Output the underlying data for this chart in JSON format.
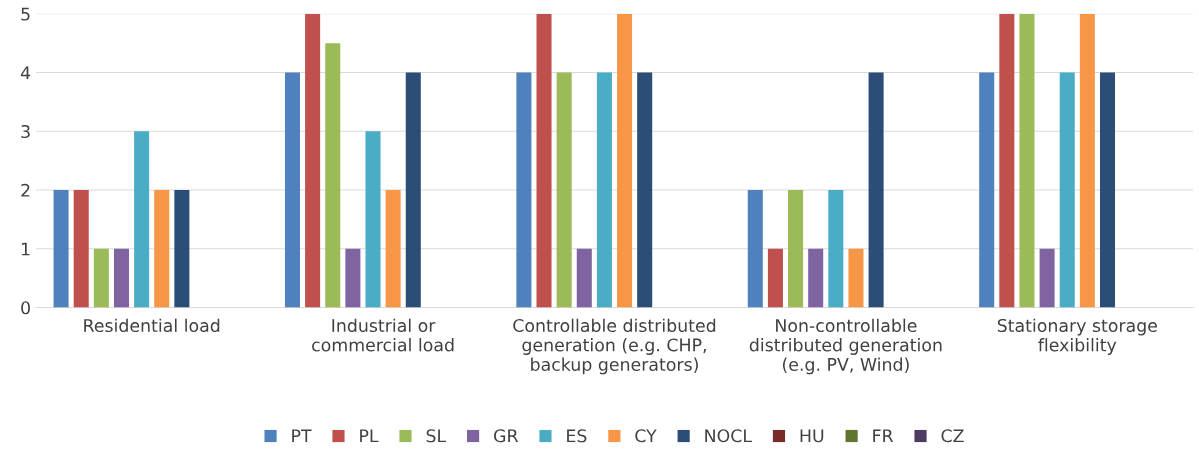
{
  "chart_data": {
    "type": "bar",
    "categories": [
      "Residential load",
      "Industrial or\ncommercial load",
      "Controllable distributed\ngeneration (e.g. CHP,\nbackup generators)",
      "Non-controllable\ndistributed generation\n(e.g. PV, Wind)",
      "Stationary storage\nflexibility"
    ],
    "series": [
      {
        "name": "PT",
        "color": "#4f81bd",
        "values": [
          2,
          4,
          4,
          2,
          4
        ]
      },
      {
        "name": "PL",
        "color": "#c0504d",
        "values": [
          2,
          5,
          5,
          1,
          5
        ]
      },
      {
        "name": "SL",
        "color": "#9bbb59",
        "values": [
          1,
          4.5,
          4,
          2,
          5
        ]
      },
      {
        "name": "GR",
        "color": "#8064a2",
        "values": [
          1,
          1,
          1,
          1,
          1
        ]
      },
      {
        "name": "ES",
        "color": "#4bacc6",
        "values": [
          3,
          3,
          4,
          2,
          4
        ]
      },
      {
        "name": "CY",
        "color": "#f79646",
        "values": [
          2,
          2,
          5,
          1,
          5
        ]
      },
      {
        "name": "NOCL",
        "color": "#2c4d75",
        "values": [
          2,
          4,
          4,
          4,
          4
        ]
      },
      {
        "name": "HU",
        "color": "#772c2a",
        "values": [
          null,
          null,
          null,
          null,
          null
        ]
      },
      {
        "name": "FR",
        "color": "#5f7530",
        "values": [
          null,
          null,
          null,
          null,
          null
        ]
      },
      {
        "name": "CZ",
        "color": "#4d3b62",
        "values": [
          null,
          null,
          null,
          null,
          null
        ]
      }
    ],
    "ylim": [
      0,
      5
    ],
    "yticks": [
      0,
      1,
      2,
      3,
      4,
      5
    ],
    "grid": "y",
    "legend": "bottom"
  }
}
